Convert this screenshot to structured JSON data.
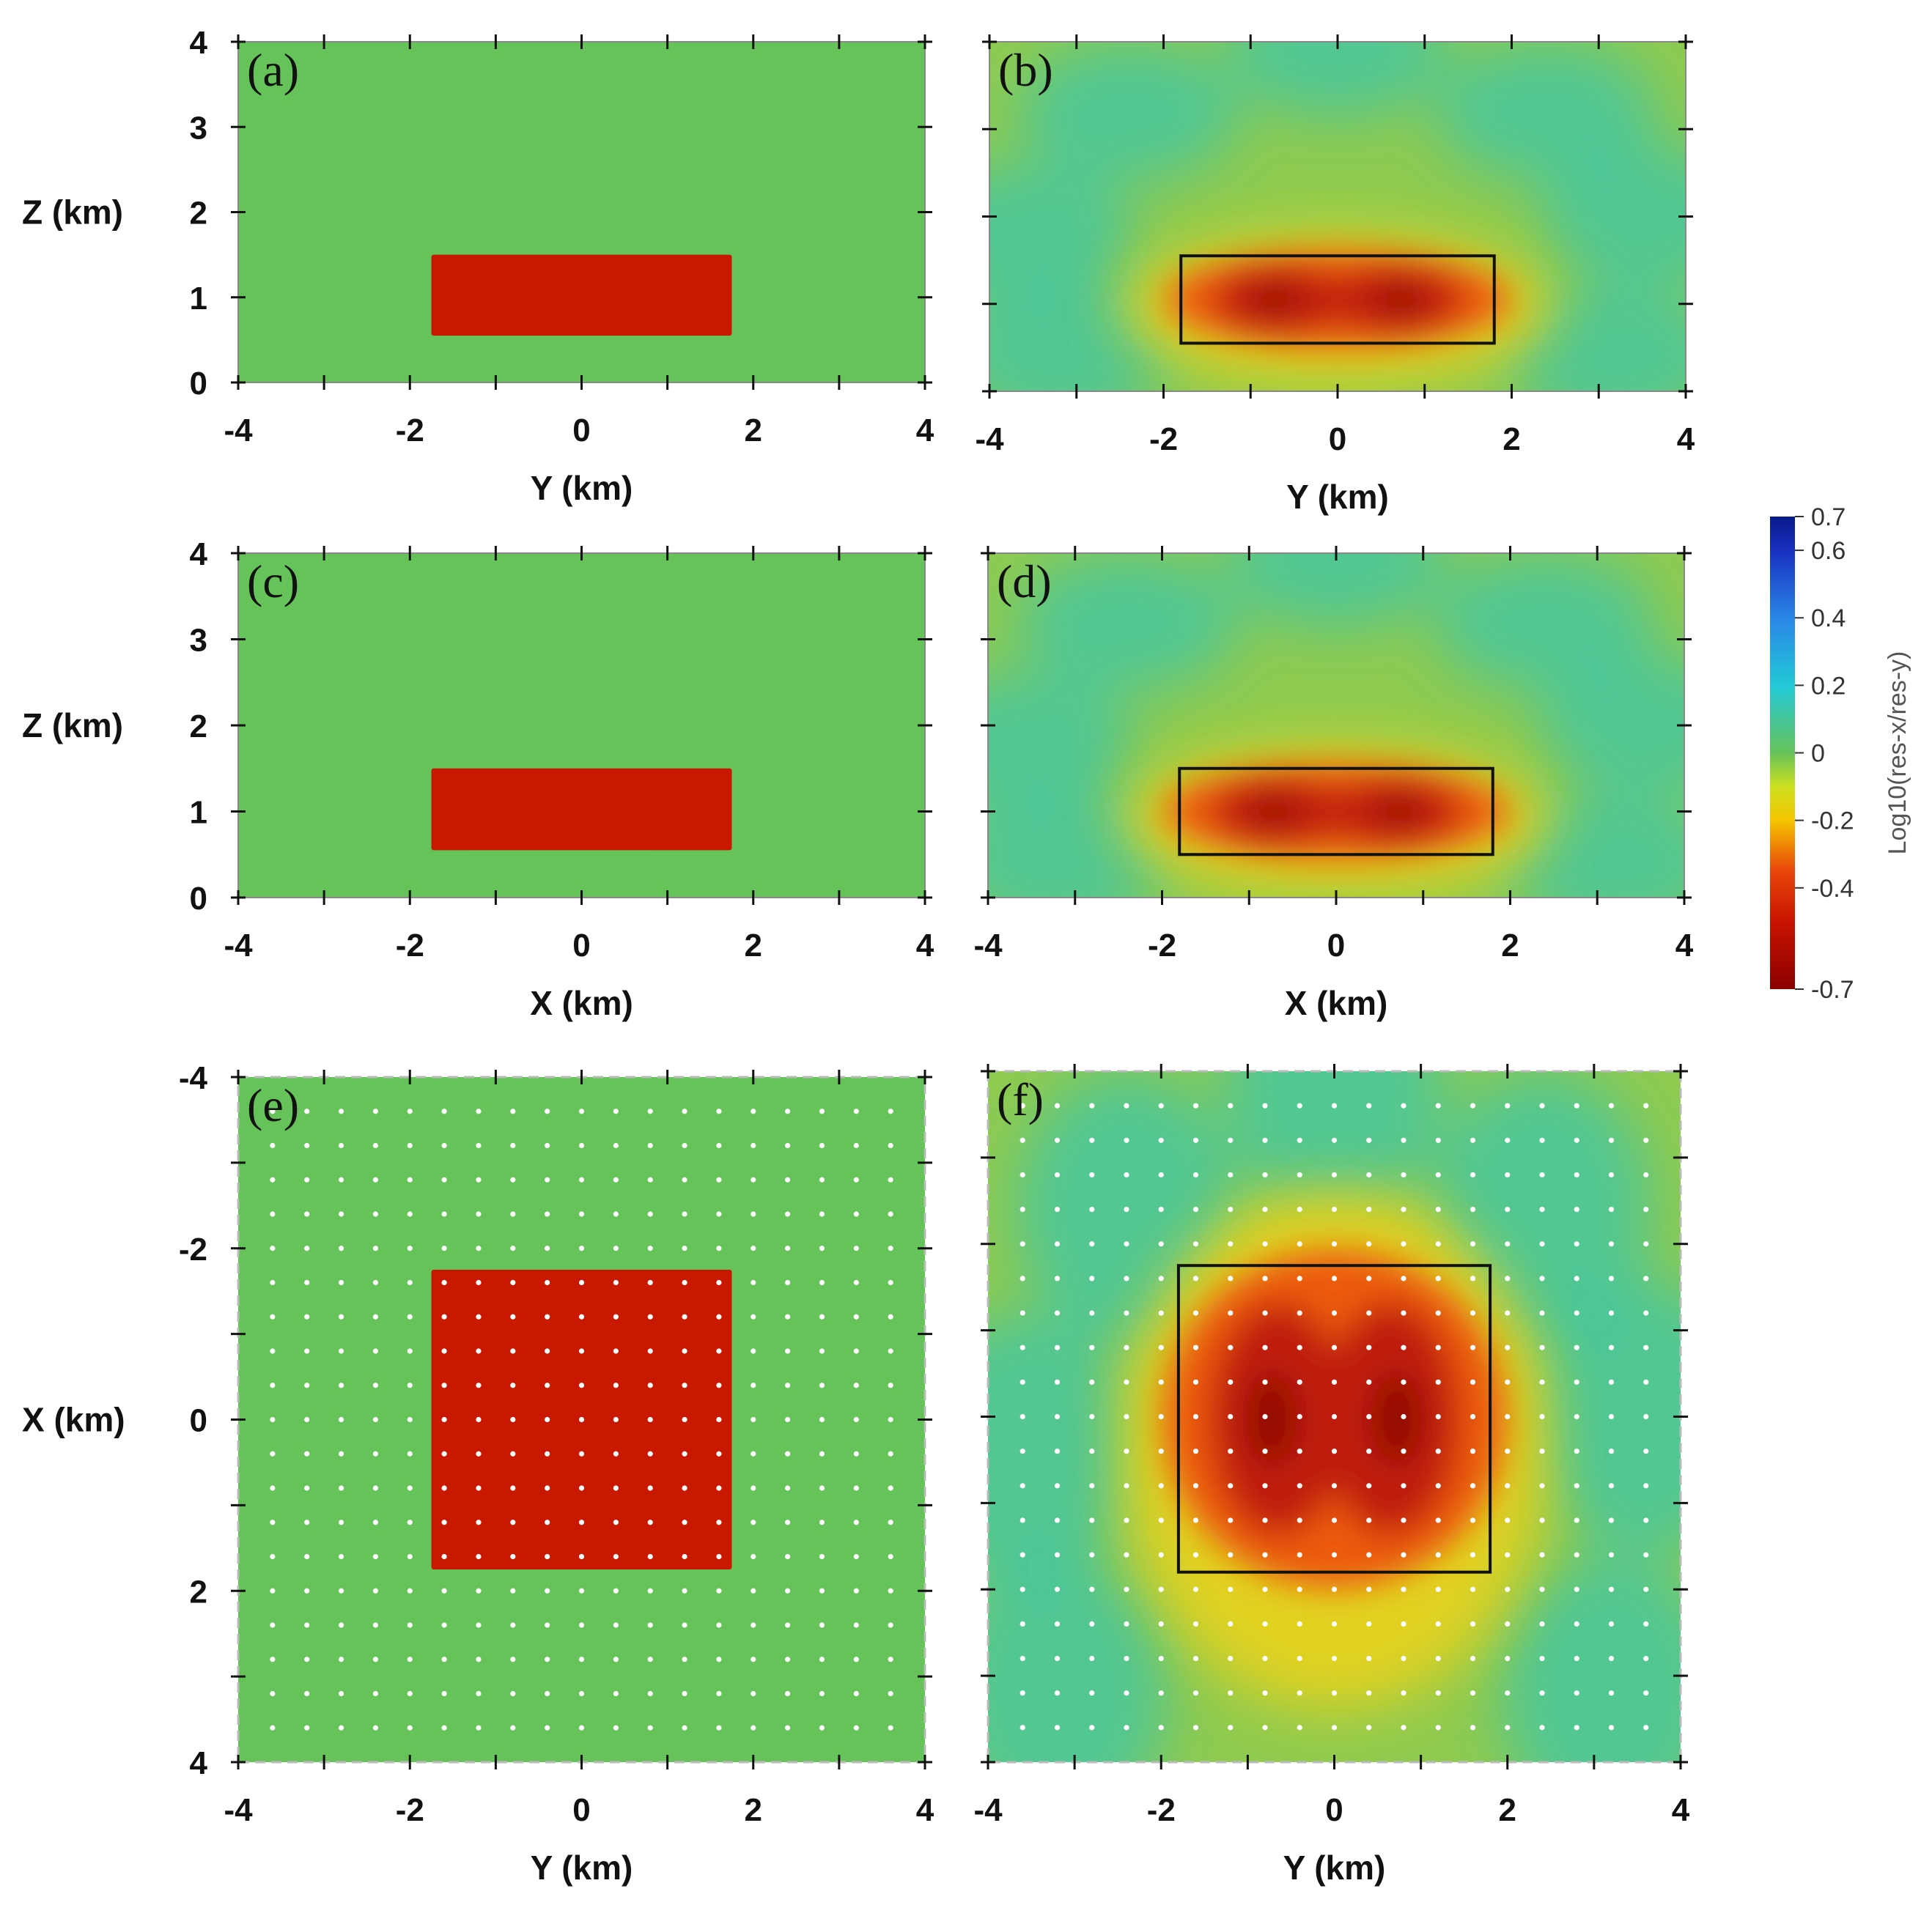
{
  "chart_data": [
    {
      "type": "heatmap",
      "id": "a",
      "label": "(a)",
      "kind": "model",
      "xlabel": "Y (km)",
      "ylabel": "Z (km)",
      "xlim": [
        -4,
        4
      ],
      "ylim": [
        4,
        0
      ],
      "xticks": [
        "-4",
        "-2",
        "0",
        "2",
        "4"
      ],
      "yticks": [
        "0",
        "1",
        "2",
        "3",
        "4"
      ],
      "background_value": 0,
      "anomaly": {
        "x": [
          -1.75,
          1.75
        ],
        "y": [
          0.55,
          1.5
        ],
        "value": -0.7
      },
      "stations": false
    },
    {
      "type": "heatmap",
      "id": "b",
      "label": "(b)",
      "kind": "inversion",
      "xlabel": "Y (km)",
      "ylabel": "",
      "xlim": [
        -4,
        4
      ],
      "ylim": [
        4,
        0
      ],
      "xticks": [
        "-4",
        "-2",
        "0",
        "2",
        "4"
      ],
      "yticks": [],
      "outline": {
        "x": [
          -1.8,
          1.8
        ],
        "y": [
          0.55,
          1.55
        ]
      },
      "stations": false
    },
    {
      "type": "heatmap",
      "id": "c",
      "label": "(c)",
      "kind": "model",
      "xlabel": "X (km)",
      "ylabel": "Z (km)",
      "xlim": [
        -4,
        4
      ],
      "ylim": [
        4,
        0
      ],
      "xticks": [
        "-4",
        "-2",
        "0",
        "2",
        "4"
      ],
      "yticks": [
        "0",
        "1",
        "2",
        "3",
        "4"
      ],
      "background_value": 0,
      "anomaly": {
        "x": [
          -1.75,
          1.75
        ],
        "y": [
          0.55,
          1.5
        ],
        "value": -0.7
      },
      "stations": false
    },
    {
      "type": "heatmap",
      "id": "d",
      "label": "(d)",
      "kind": "inversion",
      "xlabel": "X (km)",
      "ylabel": "",
      "xlim": [
        -4,
        4
      ],
      "ylim": [
        4,
        0
      ],
      "xticks": [
        "-4",
        "-2",
        "0",
        "2",
        "4"
      ],
      "yticks": [],
      "outline": {
        "x": [
          -1.8,
          1.8
        ],
        "y": [
          0.5,
          1.5
        ]
      },
      "stations": false
    },
    {
      "type": "heatmap",
      "id": "e",
      "label": "(e)",
      "kind": "model",
      "xlabel": "Y (km)",
      "ylabel": "X (km)",
      "xlim": [
        -4,
        4
      ],
      "ylim": [
        -4,
        4
      ],
      "xticks": [
        "-4",
        "-2",
        "0",
        "2",
        "4"
      ],
      "yticks": [
        "4",
        "2",
        "0",
        "-2",
        "-4"
      ],
      "background_value": 0,
      "anomaly": {
        "x": [
          -1.75,
          1.75
        ],
        "y": [
          -1.75,
          1.75
        ],
        "value": -0.7
      },
      "stations": true,
      "station_spacing": 0.4
    },
    {
      "type": "heatmap",
      "id": "f",
      "label": "(f)",
      "kind": "inversion",
      "xlabel": "Y (km)",
      "ylabel": "",
      "xlim": [
        -4,
        4
      ],
      "ylim": [
        -4,
        4
      ],
      "xticks": [
        "-4",
        "-2",
        "0",
        "2",
        "4"
      ],
      "yticks": [],
      "outline": {
        "x": [
          -1.8,
          1.8
        ],
        "y": [
          -1.75,
          1.8
        ]
      },
      "stations": true,
      "station_spacing": 0.4
    }
  ],
  "colorbar": {
    "title": "Log10(res-x/res-y)",
    "range": [
      -0.7,
      0.7
    ],
    "ticks": [
      {
        "value": 0.7,
        "label": "0.7"
      },
      {
        "value": 0.6,
        "label": "0.6"
      },
      {
        "value": 0.4,
        "label": "0.4"
      },
      {
        "value": 0.2,
        "label": "0.2"
      },
      {
        "value": 0,
        "label": "0"
      },
      {
        "value": -0.2,
        "label": "-0.2"
      },
      {
        "value": -0.4,
        "label": "-0.4"
      },
      {
        "value": -0.7,
        "label": "-0.7"
      }
    ],
    "stops": [
      {
        "value": -0.7,
        "color": "#8b0000"
      },
      {
        "value": -0.5,
        "color": "#c81400"
      },
      {
        "value": -0.35,
        "color": "#e8460a"
      },
      {
        "value": -0.2,
        "color": "#f5c400"
      },
      {
        "value": -0.1,
        "color": "#cce020"
      },
      {
        "value": 0,
        "color": "#66c35a"
      },
      {
        "value": 0.2,
        "color": "#22c8d8"
      },
      {
        "value": 0.4,
        "color": "#2a86e6"
      },
      {
        "value": 0.6,
        "color": "#1830c0"
      },
      {
        "value": 0.7,
        "color": "#0a1a8a"
      }
    ]
  },
  "colors": {
    "model_background": "#66c35a",
    "model_anomaly": "#c81800",
    "inversion_background": "#8fcb50",
    "outline": "#111111",
    "station": "#ffffff"
  }
}
